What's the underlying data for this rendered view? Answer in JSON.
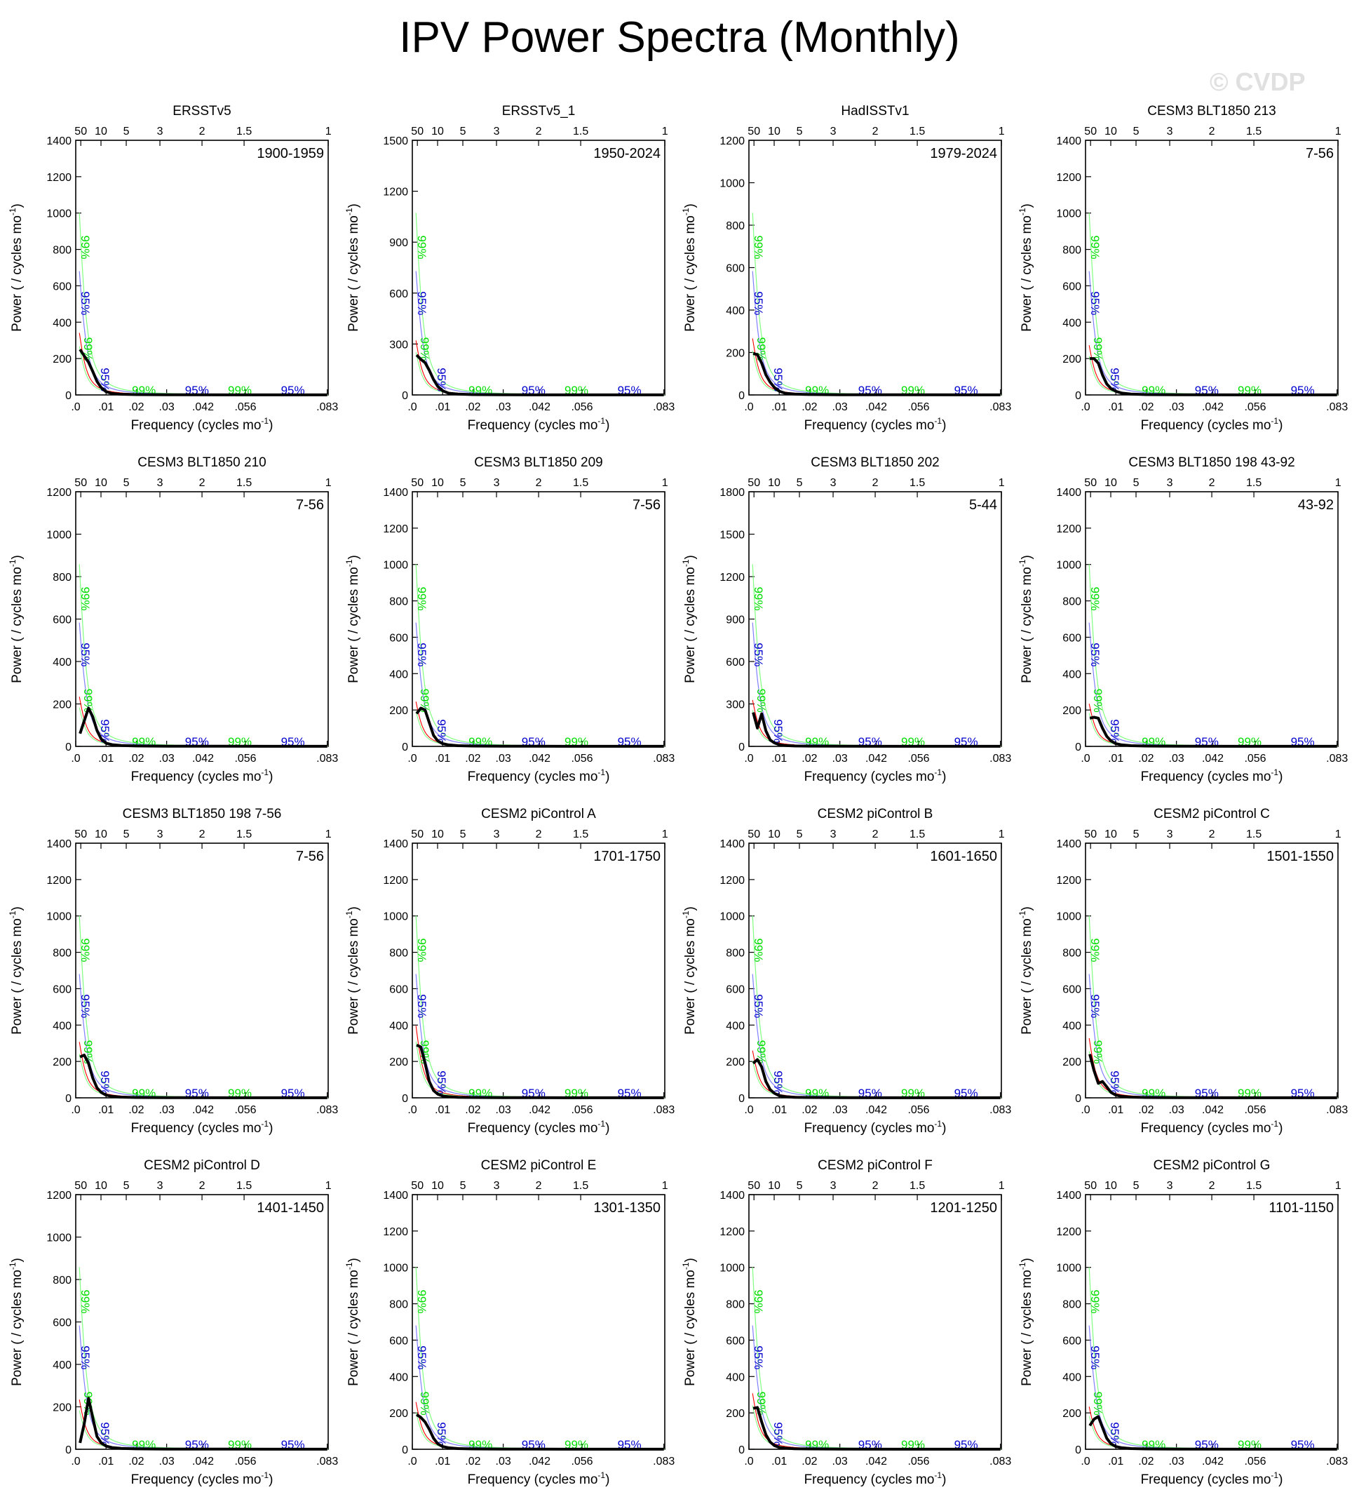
{
  "page": {
    "title": "IPV Power Spectra (Monthly)",
    "watermark": "© CVDP"
  },
  "axes_text": {
    "xlabel": "Frequency (cycles mo",
    "xlabel_sup": "-1",
    "xlabel_tail": ")",
    "ylabel": "Power ( / cycles mo",
    "ylabel_sup": "-1",
    "ylabel_tail": ")",
    "bottom_ticks": [
      ".0",
      ".01",
      ".02",
      ".03",
      ".042",
      ".056",
      ".083"
    ],
    "bottom_tick_values": [
      0,
      0.01,
      0.02,
      0.03,
      0.042,
      0.056,
      0.083
    ],
    "top_ticks": [
      "50",
      "10",
      "5",
      "3",
      "2",
      "1.5",
      "1"
    ],
    "top_tick_periods_years": [
      50,
      10,
      5,
      3,
      2,
      1.5,
      1
    ],
    "ci_labels": {
      "green": "99%",
      "blue": "95%"
    }
  },
  "colors": {
    "spectrum": "#000000",
    "red_noise": "#ff0000",
    "ci_95": "#0000cc",
    "ci_99": "#00dd00",
    "ci_95_line": "#8080ff",
    "ci_99_line": "#80ff80"
  },
  "chart_data": [
    {
      "type": "line",
      "title": "ERSSTv5",
      "period": "1900-1959",
      "ylim": [
        0,
        1400
      ],
      "yticks": [
        0,
        200,
        400,
        600,
        800,
        1000,
        1200,
        1400
      ],
      "xlim": [
        0,
        0.0833
      ],
      "x": [
        0.0014,
        0.0028,
        0.0042,
        0.0056,
        0.007,
        0.0084,
        0.01,
        0.012,
        0.015,
        0.02,
        0.03,
        0.05,
        0.083
      ],
      "series": [
        {
          "values": [
            250,
            215,
            180,
            130,
            75,
            40,
            18,
            8,
            4,
            2,
            1,
            0.5,
            0.3
          ]
        }
      ]
    },
    {
      "type": "line",
      "title": "ERSSTv5_1",
      "period": "1950-2024",
      "ylim": [
        0,
        1500
      ],
      "yticks": [
        0,
        300,
        600,
        900,
        1200,
        1500
      ],
      "xlim": [
        0,
        0.0833
      ],
      "x": [
        0.0014,
        0.0028,
        0.0042,
        0.0056,
        0.007,
        0.0084,
        0.01,
        0.012,
        0.015,
        0.02,
        0.03,
        0.05,
        0.083
      ],
      "series": [
        {
          "values": [
            235,
            210,
            190,
            145,
            90,
            50,
            25,
            10,
            5,
            2,
            1,
            0.5,
            0.3
          ]
        }
      ]
    },
    {
      "type": "line",
      "title": "HadISSTv1",
      "period": "1979-2024",
      "ylim": [
        0,
        1200
      ],
      "yticks": [
        0,
        200,
        400,
        600,
        800,
        1000,
        1200
      ],
      "xlim": [
        0,
        0.0833
      ],
      "x": [
        0.0014,
        0.0028,
        0.0042,
        0.0056,
        0.007,
        0.0084,
        0.01,
        0.012,
        0.015,
        0.02,
        0.03,
        0.05,
        0.083
      ],
      "series": [
        {
          "values": [
            195,
            190,
            150,
            95,
            60,
            35,
            18,
            8,
            4,
            2,
            1,
            0.5,
            0.3
          ]
        }
      ]
    },
    {
      "type": "line",
      "title": "CESM3 BLT1850 213",
      "period": "7-56",
      "ylim": [
        0,
        1400
      ],
      "yticks": [
        0,
        200,
        400,
        600,
        800,
        1000,
        1200,
        1400
      ],
      "xlim": [
        0,
        0.0833
      ],
      "x": [
        0.0014,
        0.0028,
        0.0042,
        0.0056,
        0.007,
        0.0084,
        0.01,
        0.012,
        0.015,
        0.02,
        0.03,
        0.05,
        0.083
      ],
      "series": [
        {
          "values": [
            200,
            200,
            175,
            110,
            60,
            35,
            20,
            10,
            5,
            2,
            1,
            0.5,
            0.3
          ]
        }
      ]
    },
    {
      "type": "line",
      "title": "CESM3 BLT1850 210",
      "period": "7-56",
      "ylim": [
        0,
        1200
      ],
      "yticks": [
        0,
        200,
        400,
        600,
        800,
        1000,
        1200
      ],
      "xlim": [
        0,
        0.0833
      ],
      "x": [
        0.0014,
        0.0028,
        0.0042,
        0.0056,
        0.007,
        0.0084,
        0.01,
        0.012,
        0.015,
        0.02,
        0.03,
        0.05,
        0.083
      ],
      "series": [
        {
          "values": [
            60,
            120,
            180,
            140,
            75,
            35,
            15,
            8,
            4,
            2,
            1,
            0.5,
            0.3
          ]
        }
      ]
    },
    {
      "type": "line",
      "title": "CESM3 BLT1850 209",
      "period": "7-56",
      "ylim": [
        0,
        1400
      ],
      "yticks": [
        0,
        200,
        400,
        600,
        800,
        1000,
        1200,
        1400
      ],
      "xlim": [
        0,
        0.0833
      ],
      "x": [
        0.0014,
        0.0028,
        0.0042,
        0.0056,
        0.007,
        0.0084,
        0.01,
        0.012,
        0.015,
        0.02,
        0.03,
        0.05,
        0.083
      ],
      "series": [
        {
          "values": [
            180,
            210,
            200,
            130,
            60,
            30,
            15,
            8,
            4,
            2,
            1,
            0.5,
            0.3
          ]
        }
      ]
    },
    {
      "type": "line",
      "title": "CESM3 BLT1850 202",
      "period": "5-44",
      "ylim": [
        0,
        1800
      ],
      "yticks": [
        0,
        300,
        600,
        900,
        1200,
        1500,
        1800
      ],
      "xlim": [
        0,
        0.0833
      ],
      "x": [
        0.0014,
        0.0028,
        0.0042,
        0.0056,
        0.007,
        0.0084,
        0.01,
        0.012,
        0.015,
        0.02,
        0.03,
        0.05,
        0.083
      ],
      "series": [
        {
          "values": [
            240,
            130,
            230,
            110,
            45,
            25,
            12,
            6,
            3,
            2,
            1,
            0.5,
            0.3
          ]
        }
      ]
    },
    {
      "type": "line",
      "title": "CESM3 BLT1850 198 43-92",
      "period": "43-92",
      "ylim": [
        0,
        1400
      ],
      "yticks": [
        0,
        200,
        400,
        600,
        800,
        1000,
        1200,
        1400
      ],
      "xlim": [
        0,
        0.0833
      ],
      "x": [
        0.0014,
        0.0028,
        0.0042,
        0.0056,
        0.007,
        0.0084,
        0.01,
        0.012,
        0.015,
        0.02,
        0.03,
        0.05,
        0.083
      ],
      "series": [
        {
          "values": [
            155,
            160,
            155,
            100,
            55,
            30,
            15,
            8,
            4,
            2,
            1,
            0.5,
            0.3
          ]
        }
      ]
    },
    {
      "type": "line",
      "title": "CESM3 BLT1850 198 7-56",
      "period": "7-56",
      "ylim": [
        0,
        1400
      ],
      "yticks": [
        0,
        200,
        400,
        600,
        800,
        1000,
        1200,
        1400
      ],
      "xlim": [
        0,
        0.0833
      ],
      "x": [
        0.0014,
        0.0028,
        0.0042,
        0.0056,
        0.007,
        0.0084,
        0.01,
        0.012,
        0.015,
        0.02,
        0.03,
        0.05,
        0.083
      ],
      "series": [
        {
          "values": [
            225,
            235,
            190,
            110,
            55,
            30,
            15,
            8,
            4,
            2,
            1,
            0.5,
            0.3
          ]
        }
      ]
    },
    {
      "type": "line",
      "title": "CESM2 piControl A",
      "period": "1701-1750",
      "ylim": [
        0,
        1400
      ],
      "yticks": [
        0,
        200,
        400,
        600,
        800,
        1000,
        1200,
        1400
      ],
      "xlim": [
        0,
        0.0833
      ],
      "x": [
        0.0014,
        0.0028,
        0.0042,
        0.0056,
        0.007,
        0.0084,
        0.01,
        0.012,
        0.015,
        0.02,
        0.03,
        0.05,
        0.083
      ],
      "series": [
        {
          "values": [
            290,
            280,
            190,
            90,
            40,
            20,
            10,
            6,
            3,
            2,
            1,
            0.5,
            0.3
          ]
        }
      ]
    },
    {
      "type": "line",
      "title": "CESM2 piControl B",
      "period": "1601-1650",
      "ylim": [
        0,
        1400
      ],
      "yticks": [
        0,
        200,
        400,
        600,
        800,
        1000,
        1200,
        1400
      ],
      "xlim": [
        0,
        0.0833
      ],
      "x": [
        0.0014,
        0.0028,
        0.0042,
        0.0056,
        0.007,
        0.0084,
        0.01,
        0.012,
        0.015,
        0.02,
        0.03,
        0.05,
        0.083
      ],
      "series": [
        {
          "values": [
            190,
            210,
            170,
            90,
            45,
            25,
            12,
            6,
            3,
            2,
            1,
            0.5,
            0.3
          ]
        }
      ]
    },
    {
      "type": "line",
      "title": "CESM2 piControl C",
      "period": "1501-1550",
      "ylim": [
        0,
        1400
      ],
      "yticks": [
        0,
        200,
        400,
        600,
        800,
        1000,
        1200,
        1400
      ],
      "xlim": [
        0,
        0.0833
      ],
      "x": [
        0.0014,
        0.0028,
        0.0042,
        0.0056,
        0.007,
        0.0084,
        0.01,
        0.012,
        0.015,
        0.02,
        0.03,
        0.05,
        0.083
      ],
      "series": [
        {
          "values": [
            240,
            150,
            80,
            90,
            60,
            30,
            15,
            8,
            4,
            2,
            1,
            0.5,
            0.3
          ]
        }
      ]
    },
    {
      "type": "line",
      "title": "CESM2 piControl D",
      "period": "1401-1450",
      "ylim": [
        0,
        1200
      ],
      "yticks": [
        0,
        200,
        400,
        600,
        800,
        1000,
        1200
      ],
      "xlim": [
        0,
        0.0833
      ],
      "x": [
        0.0014,
        0.0028,
        0.0042,
        0.0056,
        0.007,
        0.0084,
        0.01,
        0.012,
        0.015,
        0.02,
        0.03,
        0.05,
        0.083
      ],
      "series": [
        {
          "values": [
            30,
            120,
            240,
            150,
            60,
            30,
            15,
            8,
            4,
            2,
            1,
            0.5,
            0.3
          ]
        }
      ]
    },
    {
      "type": "line",
      "title": "CESM2 piControl E",
      "period": "1301-1350",
      "ylim": [
        0,
        1400
      ],
      "yticks": [
        0,
        200,
        400,
        600,
        800,
        1000,
        1200,
        1400
      ],
      "xlim": [
        0,
        0.0833
      ],
      "x": [
        0.0014,
        0.0028,
        0.0042,
        0.0056,
        0.007,
        0.0084,
        0.01,
        0.012,
        0.015,
        0.02,
        0.03,
        0.05,
        0.083
      ],
      "series": [
        {
          "values": [
            190,
            175,
            150,
            110,
            60,
            30,
            15,
            8,
            4,
            2,
            1,
            0.5,
            0.3
          ]
        }
      ]
    },
    {
      "type": "line",
      "title": "CESM2 piControl F",
      "period": "1201-1250",
      "ylim": [
        0,
        1400
      ],
      "yticks": [
        0,
        200,
        400,
        600,
        800,
        1000,
        1200,
        1400
      ],
      "xlim": [
        0,
        0.0833
      ],
      "x": [
        0.0014,
        0.0028,
        0.0042,
        0.0056,
        0.007,
        0.0084,
        0.01,
        0.012,
        0.015,
        0.02,
        0.03,
        0.05,
        0.083
      ],
      "series": [
        {
          "values": [
            225,
            230,
            150,
            80,
            40,
            20,
            10,
            6,
            3,
            2,
            1,
            0.5,
            0.3
          ]
        }
      ]
    },
    {
      "type": "line",
      "title": "CESM2 piControl G",
      "period": "1101-1150",
      "ylim": [
        0,
        1400
      ],
      "yticks": [
        0,
        200,
        400,
        600,
        800,
        1000,
        1200,
        1400
      ],
      "xlim": [
        0,
        0.0833
      ],
      "x": [
        0.0014,
        0.0028,
        0.0042,
        0.0056,
        0.007,
        0.0084,
        0.01,
        0.012,
        0.015,
        0.02,
        0.03,
        0.05,
        0.083
      ],
      "series": [
        {
          "values": [
            130,
            165,
            180,
            120,
            60,
            30,
            15,
            8,
            4,
            2,
            1,
            0.5,
            0.3
          ]
        }
      ]
    }
  ]
}
